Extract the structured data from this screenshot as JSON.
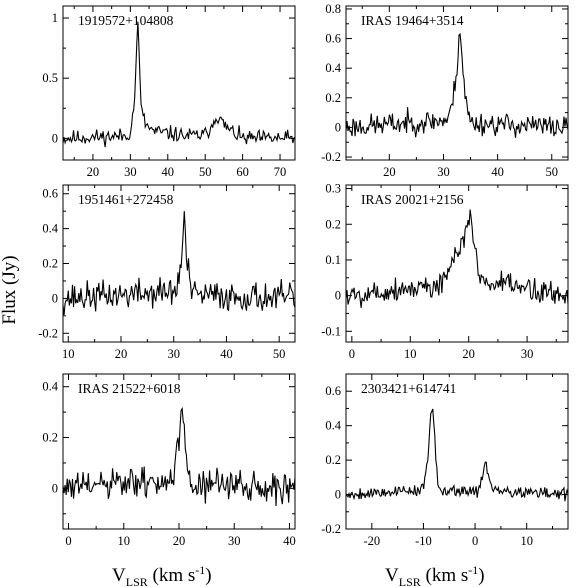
{
  "figure": {
    "ylabel": "Flux (Jy)",
    "xlabel_left": {
      "main": "V",
      "sub": "LSR",
      "unit_pre": " (km s",
      "unit_sup": "-1",
      "unit_post": ")"
    },
    "xlabel_right": {
      "main": "V",
      "sub": "LSR",
      "unit_pre": " (km s",
      "unit_sup": "-1",
      "unit_post": ")"
    }
  },
  "chart_data": [
    {
      "type": "line",
      "title": "1919572+104808",
      "xlim": [
        12,
        74
      ],
      "ylim": [
        -0.18,
        1.1
      ],
      "xticks": [
        20,
        30,
        40,
        50,
        60,
        70
      ],
      "yticks": [
        0,
        0.5,
        1
      ],
      "ytick_labels": [
        "0",
        "0.5",
        "1"
      ],
      "baseline_noise": 0.045,
      "seed": 11,
      "x": [
        12,
        29.0,
        30.0,
        31.0,
        31.5,
        32.0,
        32.5,
        33.0,
        34.0,
        36.0,
        45.0,
        50.0,
        52.0,
        53.0,
        54.0,
        56.0,
        60.0,
        74
      ],
      "y": [
        0,
        0.02,
        0.06,
        0.25,
        0.62,
        0.95,
        0.55,
        0.22,
        0.12,
        0.06,
        0.02,
        0.03,
        0.12,
        0.2,
        0.15,
        0.08,
        0.0,
        0
      ]
    },
    {
      "type": "line",
      "title": "IRAS 19464+3514",
      "xlim": [
        12,
        53
      ],
      "ylim": [
        -0.22,
        0.82
      ],
      "xticks": [
        20,
        30,
        40,
        50
      ],
      "yticks": [
        -0.2,
        0,
        0.2,
        0.4,
        0.6,
        0.8
      ],
      "ytick_labels": [
        "-0.2",
        "0",
        "0.2",
        "0.4",
        "0.6",
        "0.8"
      ],
      "baseline_noise": 0.055,
      "seed": 23,
      "x": [
        12,
        31.0,
        32.0,
        32.5,
        33.0,
        33.5,
        34.0,
        35.0,
        53
      ],
      "y": [
        0,
        0.05,
        0.25,
        0.42,
        0.68,
        0.45,
        0.2,
        0.03,
        0
      ]
    },
    {
      "type": "line",
      "title": "1951461+272458",
      "xlim": [
        9,
        53
      ],
      "ylim": [
        -0.25,
        0.65
      ],
      "xticks": [
        10,
        20,
        30,
        40,
        50
      ],
      "yticks": [
        -0.2,
        0,
        0.2,
        0.4,
        0.6
      ],
      "ytick_labels": [
        "-0.2",
        "0",
        "0.2",
        "0.4",
        "0.6"
      ],
      "baseline_noise": 0.06,
      "seed": 37,
      "x": [
        9,
        30.5,
        31.5,
        32.0,
        32.5,
        33.5,
        53
      ],
      "y": [
        0,
        0.04,
        0.22,
        0.47,
        0.2,
        0.02,
        0
      ]
    },
    {
      "type": "line",
      "title": "IRAS 20021+2156",
      "xlim": [
        -1,
        37
      ],
      "ylim": [
        -0.13,
        0.31
      ],
      "xticks": [
        0,
        10,
        20,
        30
      ],
      "yticks": [
        -0.1,
        0,
        0.1,
        0.2,
        0.3
      ],
      "ytick_labels": [
        "-0.1",
        "0",
        "0.1",
        "0.2",
        "0.3"
      ],
      "baseline_noise": 0.025,
      "seed": 5,
      "x": [
        -1,
        15.0,
        17.0,
        18.5,
        19.5,
        20.3,
        21.0,
        22.0,
        37
      ],
      "y": [
        0,
        0.03,
        0.08,
        0.12,
        0.19,
        0.22,
        0.15,
        0.04,
        0
      ]
    },
    {
      "type": "line",
      "title": "IRAS 21522+6018",
      "xlim": [
        -1,
        41
      ],
      "ylim": [
        -0.16,
        0.45
      ],
      "xticks": [
        0,
        10,
        20,
        30,
        40
      ],
      "yticks": [
        0,
        0.2,
        0.4
      ],
      "ytick_labels": [
        "0",
        "0.2",
        "0.4"
      ],
      "baseline_noise": 0.045,
      "seed": 61,
      "x": [
        -1,
        19.0,
        20.0,
        20.5,
        21.0,
        22.0,
        41
      ],
      "y": [
        0,
        0.03,
        0.18,
        0.32,
        0.17,
        0.02,
        0
      ]
    },
    {
      "type": "line",
      "title": "2303421+614741",
      "xlim": [
        -25,
        18
      ],
      "ylim": [
        -0.2,
        0.7
      ],
      "xticks": [
        -20,
        -10,
        0,
        10
      ],
      "yticks": [
        -0.2,
        0,
        0.2,
        0.4,
        0.6
      ],
      "ytick_labels": [
        "-0.2",
        "0",
        "0.2",
        "0.4",
        "0.6"
      ],
      "baseline_noise": 0.025,
      "seed": 79,
      "x": [
        -25,
        -10.0,
        -9.0,
        -8.5,
        -8.0,
        -7.5,
        -7.0,
        0.5,
        1.5,
        2.0,
        2.5,
        3.5,
        18
      ],
      "y": [
        0,
        0.03,
        0.25,
        0.52,
        0.42,
        0.15,
        0.03,
        0.02,
        0.12,
        0.19,
        0.12,
        0.02,
        0
      ]
    }
  ]
}
